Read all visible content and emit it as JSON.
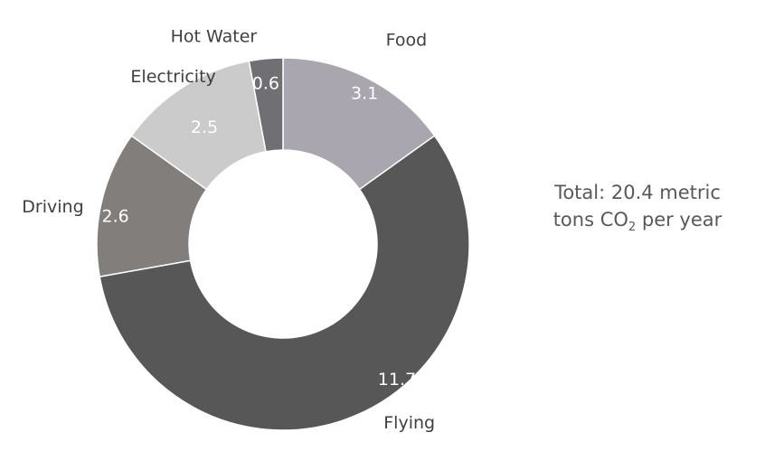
{
  "chart_data": {
    "type": "pie",
    "donut": true,
    "categories": [
      "Food",
      "Flying",
      "Driving",
      "Electricity",
      "Hot Water"
    ],
    "values": [
      3.1,
      11.7,
      2.6,
      2.5,
      0.6
    ],
    "value_labels": [
      "3.1",
      "11.7",
      "2.6",
      "2.5",
      "0.6"
    ],
    "colors": [
      "#a9a6b0",
      "#575757",
      "#827e7c",
      "#cbcbcb",
      "#707074"
    ],
    "start": "top, clockwise"
  },
  "note": {
    "line1": "Total: 20.4 metric",
    "line2_pre": "tons CO",
    "line2_sub": "2",
    "line2_post": " per year"
  }
}
